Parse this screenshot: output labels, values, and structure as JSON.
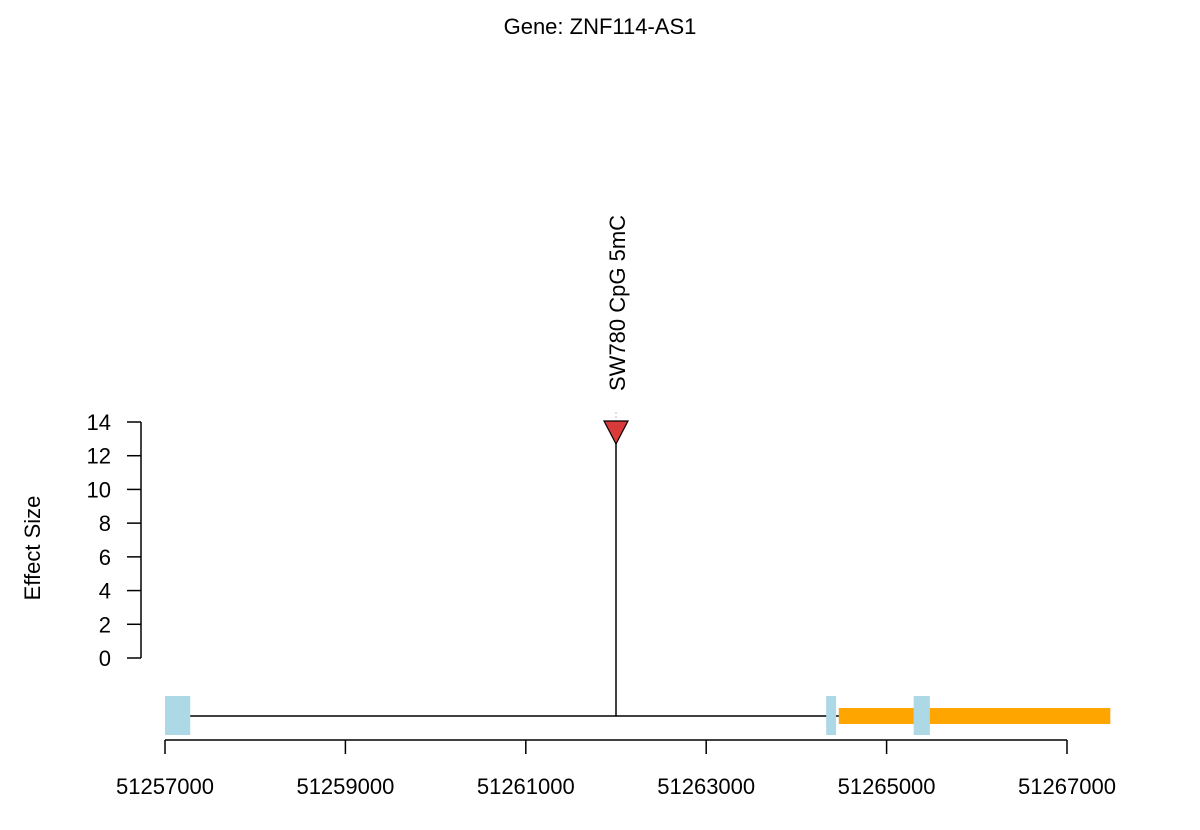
{
  "chart_data": {
    "type": "lollipop",
    "title": "Gene: ZNF114-AS1",
    "ylabel": "Effect Size",
    "xlabel": "",
    "grid": false,
    "x_ticks": [
      51257000,
      51259000,
      51261000,
      51263000,
      51265000,
      51267000
    ],
    "x_tick_labels": [
      "51257000",
      "51259000",
      "51261000",
      "51263000",
      "51265000",
      "51267000"
    ],
    "y_ticks": [
      0,
      2,
      4,
      6,
      8,
      10,
      12,
      14
    ],
    "y_tick_labels": [
      "0",
      "2",
      "4",
      "6",
      "8",
      "10",
      "12",
      "14"
    ],
    "xlim": [
      51257000,
      51267000
    ],
    "ylim": [
      0,
      14
    ],
    "points": [
      {
        "label": "SW780 CpG 5mC",
        "x": 51262000,
        "y": 14,
        "marker": "triangle-down",
        "color": "#d93b3b"
      }
    ],
    "gene_track": {
      "line_start": 51257000,
      "line_end": 51264500,
      "exons": [
        {
          "start": 51257000,
          "end": 51257280,
          "color": "#add8e6"
        },
        {
          "start": 51264330,
          "end": 51264440,
          "color": "#add8e6"
        },
        {
          "start": 51265300,
          "end": 51265480,
          "color": "#add8e6"
        }
      ],
      "features": [
        {
          "start": 51264470,
          "end": 51267480,
          "color": "#ffa500"
        }
      ]
    }
  }
}
